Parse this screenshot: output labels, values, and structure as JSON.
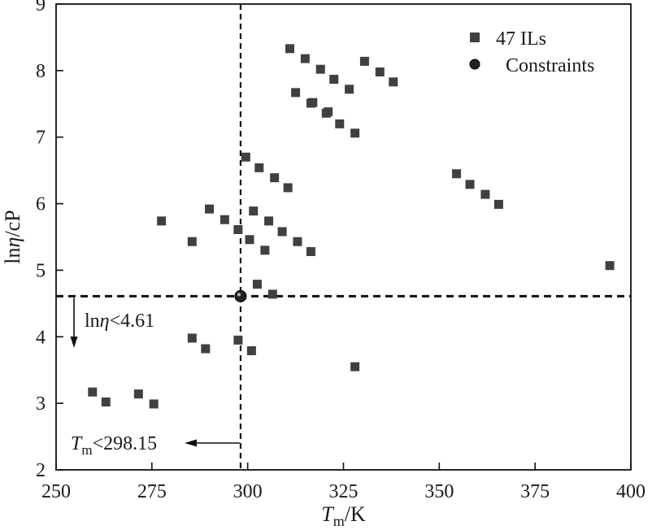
{
  "chart_data": {
    "type": "scatter",
    "xlabel": {
      "main": "T",
      "sub": "m",
      "unit": "/K"
    },
    "ylabel": {
      "pre": "ln",
      "symbol": "η",
      "unit": "/cP"
    },
    "xlim": [
      250,
      400
    ],
    "ylim": [
      2,
      9
    ],
    "xticks": [
      250,
      275,
      300,
      325,
      350,
      375,
      400
    ],
    "yticks": [
      2,
      3,
      4,
      5,
      6,
      7,
      8,
      9
    ],
    "grid": false,
    "legend": "top-right",
    "series": [
      {
        "name": "47 ILs",
        "marker": "square",
        "color": "#404040",
        "points": [
          [
            259.5,
            3.17
          ],
          [
            263.0,
            3.02
          ],
          [
            271.5,
            3.14
          ],
          [
            275.5,
            2.99
          ],
          [
            277.5,
            5.74
          ],
          [
            285.5,
            5.43
          ],
          [
            285.5,
            3.98
          ],
          [
            289.0,
            3.82
          ],
          [
            290.0,
            5.92
          ],
          [
            294.0,
            5.76
          ],
          [
            297.5,
            5.61
          ],
          [
            297.5,
            3.95
          ],
          [
            299.5,
            6.7
          ],
          [
            300.5,
            5.46
          ],
          [
            301.0,
            3.79
          ],
          [
            301.5,
            5.89
          ],
          [
            302.5,
            4.79
          ],
          [
            303.0,
            6.54
          ],
          [
            304.5,
            5.3
          ],
          [
            305.5,
            5.74
          ],
          [
            306.5,
            4.64
          ],
          [
            307.0,
            6.39
          ],
          [
            309.0,
            5.58
          ],
          [
            310.5,
            6.24
          ],
          [
            311.0,
            8.33
          ],
          [
            312.5,
            7.67
          ],
          [
            313.0,
            5.43
          ],
          [
            315.0,
            8.18
          ],
          [
            316.5,
            5.28
          ],
          [
            316.5,
            7.51
          ],
          [
            317.0,
            7.52
          ],
          [
            319.0,
            8.02
          ],
          [
            320.5,
            7.36
          ],
          [
            321.0,
            7.38
          ],
          [
            322.5,
            7.87
          ],
          [
            324.0,
            7.2
          ],
          [
            326.5,
            7.72
          ],
          [
            328.0,
            7.06
          ],
          [
            328.0,
            3.55
          ],
          [
            330.5,
            8.14
          ],
          [
            334.5,
            7.98
          ],
          [
            338.0,
            7.83
          ],
          [
            354.5,
            6.45
          ],
          [
            358.0,
            6.29
          ],
          [
            362.0,
            6.14
          ],
          [
            365.5,
            5.99
          ],
          [
            394.5,
            5.07
          ]
        ]
      },
      {
        "name": "Constraints",
        "marker": "circle",
        "color": "#222222",
        "points": [
          [
            298.15,
            4.61
          ]
        ]
      }
    ],
    "annotations": {
      "vline_x": 298.15,
      "hline_y": 4.61,
      "tm_label": {
        "main": "T",
        "sub": "m",
        "rest": "<298.15"
      },
      "eta_label": {
        "pre": "ln",
        "symbol": "η",
        "rest": "<4.61"
      }
    }
  }
}
